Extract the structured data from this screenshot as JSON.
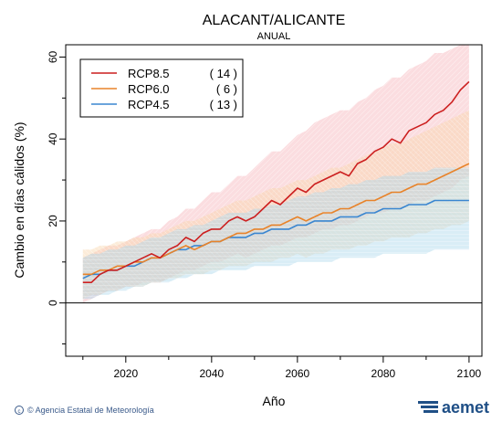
{
  "colors": {
    "rcp85": "#cc1f1f",
    "rcp60": "#e8832a",
    "rcp45": "#3a86d0",
    "rcp85_band": "#f6b2b8",
    "rcp60_band": "#f8d3a8",
    "rcp45_band": "#a9d6ea",
    "brand": "#1f4f86"
  },
  "footer": {
    "credit": "© Agencia Estatal de Meteorología",
    "brand": "aemet"
  },
  "chart_data": {
    "type": "line",
    "title": "ALACANT/ALICANTE",
    "subtitle": "ANUAL",
    "xlabel": "Año",
    "ylabel": "Cambio en días cálidos (%)",
    "xlim": [
      2006,
      2103
    ],
    "ylim": [
      -13,
      63
    ],
    "xticks": [
      2020,
      2040,
      2060,
      2080,
      2100
    ],
    "yticks": [
      0,
      20,
      40,
      60
    ],
    "grid": false,
    "legend_position": "top-left",
    "x": [
      2010,
      2012,
      2014,
      2016,
      2018,
      2020,
      2022,
      2024,
      2026,
      2028,
      2030,
      2032,
      2034,
      2036,
      2038,
      2040,
      2042,
      2044,
      2046,
      2048,
      2050,
      2052,
      2054,
      2056,
      2058,
      2060,
      2062,
      2064,
      2066,
      2068,
      2070,
      2072,
      2074,
      2076,
      2078,
      2080,
      2082,
      2084,
      2086,
      2088,
      2090,
      2092,
      2094,
      2096,
      2098,
      2100
    ],
    "series": [
      {
        "name": "RCP8.5",
        "count": "( 14 )",
        "values": [
          5,
          5,
          7,
          8,
          8,
          9,
          10,
          11,
          12,
          11,
          13,
          14,
          16,
          15,
          17,
          18,
          18,
          20,
          21,
          20,
          21,
          23,
          25,
          24,
          26,
          28,
          27,
          29,
          30,
          31,
          32,
          31,
          34,
          35,
          37,
          38,
          40,
          39,
          42,
          43,
          44,
          46,
          47,
          49,
          52,
          54
        ],
        "lower": [
          0,
          1,
          2,
          3,
          3,
          4,
          4,
          5,
          5,
          5,
          6,
          7,
          8,
          8,
          9,
          10,
          10,
          11,
          12,
          11,
          12,
          13,
          14,
          14,
          15,
          16,
          16,
          17,
          18,
          18,
          19,
          19,
          20,
          21,
          22,
          22,
          23,
          23,
          24,
          25,
          25,
          26,
          27,
          28,
          30,
          31
        ],
        "upper": [
          11,
          12,
          13,
          14,
          14,
          15,
          16,
          17,
          18,
          18,
          20,
          21,
          23,
          23,
          25,
          27,
          27,
          29,
          31,
          31,
          33,
          35,
          37,
          37,
          39,
          41,
          42,
          44,
          45,
          46,
          47,
          47,
          49,
          50,
          52,
          53,
          55,
          55,
          57,
          58,
          59,
          61,
          61,
          62,
          63,
          63
        ]
      },
      {
        "name": "RCP6.0",
        "count": "( 6 )",
        "values": [
          7,
          7,
          8,
          8,
          9,
          9,
          10,
          10,
          11,
          11,
          12,
          13,
          14,
          13,
          14,
          15,
          15,
          16,
          17,
          17,
          18,
          18,
          19,
          19,
          20,
          21,
          20,
          21,
          22,
          22,
          23,
          23,
          24,
          25,
          25,
          26,
          27,
          27,
          28,
          29,
          29,
          30,
          31,
          32,
          33,
          34
        ],
        "lower": [
          1,
          2,
          2,
          3,
          3,
          4,
          4,
          4,
          5,
          5,
          6,
          6,
          7,
          7,
          7,
          8,
          8,
          9,
          9,
          9,
          10,
          10,
          10,
          11,
          11,
          12,
          11,
          12,
          12,
          13,
          13,
          13,
          14,
          14,
          15,
          15,
          16,
          16,
          16,
          17,
          17,
          18,
          18,
          19,
          19,
          20
        ],
        "upper": [
          13,
          13,
          14,
          14,
          15,
          15,
          16,
          16,
          17,
          17,
          18,
          19,
          20,
          20,
          21,
          22,
          23,
          24,
          25,
          25,
          26,
          27,
          28,
          28,
          29,
          30,
          30,
          31,
          32,
          33,
          33,
          34,
          35,
          36,
          37,
          38,
          39,
          39,
          40,
          41,
          42,
          43,
          44,
          45,
          46,
          47
        ]
      },
      {
        "name": "RCP4.5",
        "count": "( 13 )",
        "values": [
          6,
          7,
          7,
          8,
          8,
          9,
          9,
          10,
          11,
          11,
          12,
          13,
          13,
          14,
          14,
          15,
          15,
          16,
          16,
          16,
          17,
          17,
          18,
          18,
          18,
          19,
          19,
          20,
          20,
          20,
          21,
          21,
          21,
          22,
          22,
          23,
          23,
          23,
          24,
          24,
          24,
          25,
          25,
          25,
          25,
          25
        ],
        "lower": [
          1,
          1,
          2,
          2,
          3,
          3,
          4,
          4,
          5,
          5,
          5,
          6,
          6,
          7,
          7,
          7,
          8,
          8,
          8,
          8,
          9,
          9,
          9,
          9,
          9,
          10,
          10,
          10,
          10,
          10,
          11,
          11,
          11,
          11,
          11,
          12,
          12,
          12,
          12,
          12,
          12,
          13,
          13,
          13,
          13,
          13
        ],
        "upper": [
          11,
          12,
          12,
          13,
          13,
          14,
          14,
          15,
          16,
          16,
          17,
          18,
          18,
          19,
          19,
          20,
          21,
          22,
          22,
          22,
          23,
          23,
          24,
          24,
          25,
          26,
          26,
          27,
          27,
          28,
          28,
          29,
          29,
          30,
          30,
          31,
          31,
          31,
          32,
          32,
          32,
          33,
          33,
          33,
          33,
          33
        ]
      }
    ]
  }
}
